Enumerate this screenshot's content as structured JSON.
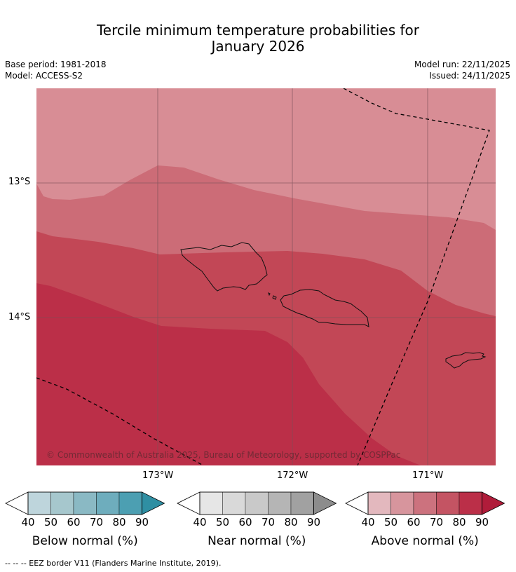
{
  "header": {
    "title_line1": "Tercile minimum temperature probabilities for",
    "title_line2": "January 2026",
    "base_period": "Base period: 1981-2018",
    "model": "Model: ACCESS-S2",
    "model_run": "Model run: 22/11/2025",
    "issued": "Issued: 24/11/2025"
  },
  "map": {
    "lat_labels": [
      "13°S",
      "14°S"
    ],
    "lon_labels": [
      "173°W",
      "172°W",
      "171°W"
    ],
    "copyright": "© Commonwealth of Australia 2025, Bureau of Meteorology, supported by COSPPac",
    "category_colors": {
      "above_50": "#d88d95",
      "above_60": "#cc6c77",
      "above_70": "#c24756",
      "above_80": "#bb2f48"
    }
  },
  "legends": [
    {
      "title": "Below normal (%)",
      "ticks": [
        "40",
        "50",
        "60",
        "70",
        "80",
        "90"
      ],
      "colors": [
        "#bed5dc",
        "#a6c7cd",
        "#8ab9c4",
        "#6eadbd",
        "#4c9fb2",
        "#2f8fa3"
      ]
    },
    {
      "title": "Near normal (%)",
      "ticks": [
        "40",
        "50",
        "60",
        "70",
        "80",
        "90"
      ],
      "colors": [
        "#e6e6e6",
        "#d9d9d9",
        "#c9c9c9",
        "#b5b5b5",
        "#a1a1a1",
        "#8c8c8c"
      ]
    },
    {
      "title": "Above normal (%)",
      "ticks": [
        "40",
        "50",
        "60",
        "70",
        "80",
        "90"
      ],
      "colors": [
        "#e3b8be",
        "#d7959d",
        "#cc727e",
        "#c45463",
        "#bb2f48",
        "#b01c3a"
      ]
    }
  ],
  "footnote": "--  --  -- EEZ border V11 (Flanders Marine Institute, 2019)."
}
